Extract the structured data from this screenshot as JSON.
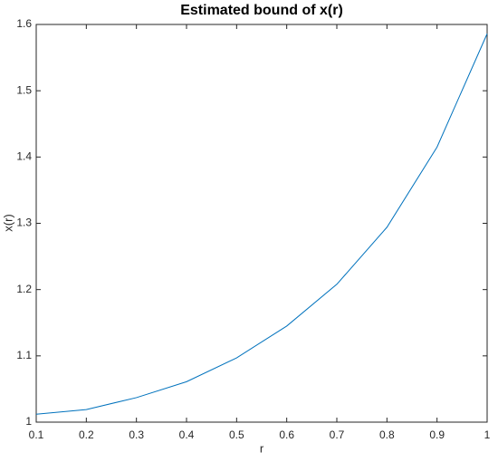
{
  "chart_data": {
    "type": "line",
    "title": "Estimated bound of x(r)",
    "x_label": "r",
    "y_label": "x(r)",
    "x": [
      0.1,
      0.2,
      0.3,
      0.4,
      0.5,
      0.6,
      0.7,
      0.8,
      0.9,
      1
    ],
    "series": [
      {
        "name": "x(r)",
        "color": "#0072bd",
        "values": [
          1.012,
          1.019,
          1.037,
          1.061,
          1.097,
          1.145,
          1.208,
          1.294,
          1.415,
          1.586
        ]
      }
    ],
    "xlim": [
      0.1,
      1
    ],
    "xticks": [
      0.1,
      0.2,
      0.3,
      0.4,
      0.5,
      0.6,
      0.7,
      0.8,
      0.9,
      1
    ],
    "ylim": [
      1,
      1.6
    ],
    "yticks": [
      1,
      1.1,
      1.2,
      1.3,
      1.4,
      1.5,
      1.6
    ],
    "grid": false
  }
}
